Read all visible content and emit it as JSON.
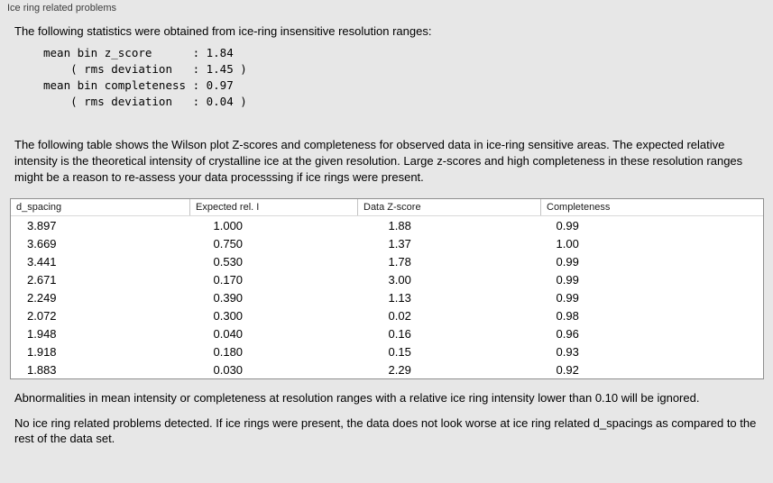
{
  "panel": {
    "title": "Ice ring related problems"
  },
  "intro": "The following statistics were obtained from ice-ring insensitive resolution ranges:",
  "stats_block": "mean bin z_score      : 1.84\n    ( rms deviation   : 1.45 )\nmean bin completeness : 0.97\n    ( rms deviation   : 0.04 )",
  "description": "The following table shows the Wilson plot Z-scores and completeness for observed data in ice-ring sensitive areas. The expected relative intensity is the theoretical intensity of crystalline ice at the given resolution. Large z-scores and high completeness in these resolution ranges might be a reason to re-assess your data processsing if ice rings were present.",
  "table": {
    "columns": [
      "d_spacing",
      "Expected rel. I",
      "Data Z-score",
      "Completeness"
    ],
    "rows": [
      [
        "3.897",
        "1.000",
        "1.88",
        "0.99"
      ],
      [
        "3.669",
        "0.750",
        "1.37",
        "1.00"
      ],
      [
        "3.441",
        "0.530",
        "1.78",
        "0.99"
      ],
      [
        "2.671",
        "0.170",
        "3.00",
        "0.99"
      ],
      [
        "2.249",
        "0.390",
        "1.13",
        "0.99"
      ],
      [
        "2.072",
        "0.300",
        "0.02",
        "0.98"
      ],
      [
        "1.948",
        "0.040",
        "0.16",
        "0.96"
      ],
      [
        "1.918",
        "0.180",
        "0.15",
        "0.93"
      ],
      [
        "1.883",
        "0.030",
        "2.29",
        "0.92"
      ]
    ]
  },
  "footer_note": "Abnormalities in mean intensity or completeness at resolution ranges with a relative ice ring intensity lower than 0.10 will be ignored.",
  "conclusion": "No ice ring related problems detected. If ice rings were present, the data does not look worse at ice ring related d_spacings as compared to the rest of the data set."
}
